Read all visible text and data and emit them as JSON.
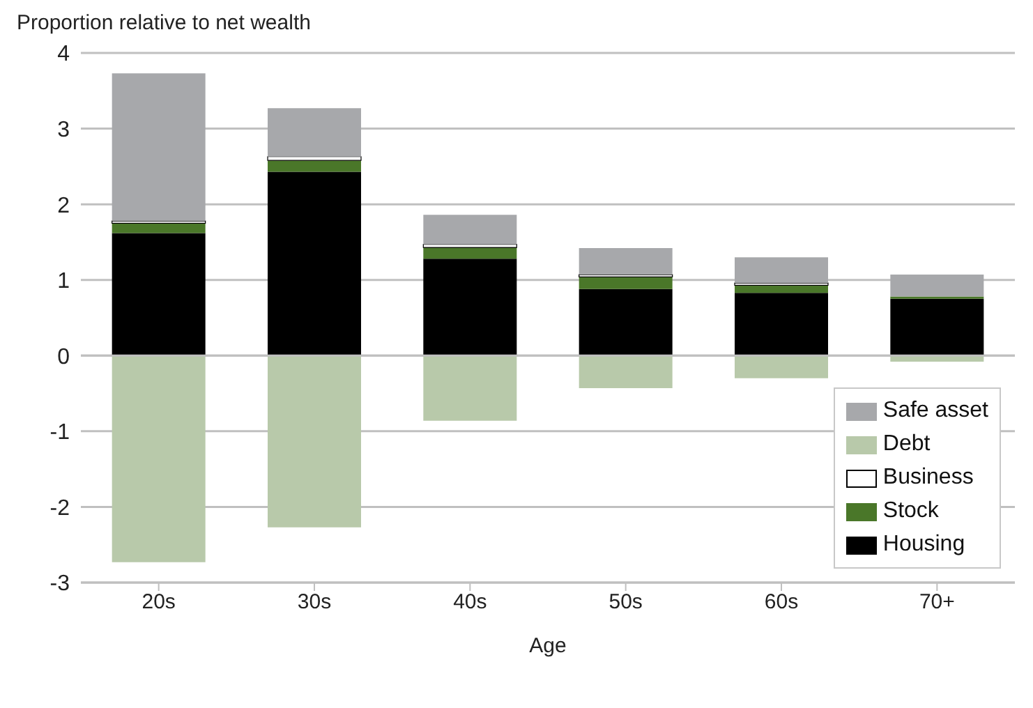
{
  "chart_data": {
    "type": "bar",
    "stacked": true,
    "xlabel": "Age",
    "ylabel": "Proportion relative to net wealth",
    "categories": [
      "20s",
      "30s",
      "40s",
      "50s",
      "60s",
      "70+"
    ],
    "series": [
      {
        "name": "Housing",
        "color": "#000000",
        "values": [
          1.62,
          2.43,
          1.28,
          0.88,
          0.83,
          0.75
        ]
      },
      {
        "name": "Stock",
        "color": "#4a7729",
        "values": [
          0.13,
          0.15,
          0.15,
          0.16,
          0.1,
          0.03
        ]
      },
      {
        "name": "Business",
        "color": "#ffffff",
        "values": [
          0.03,
          0.05,
          0.04,
          0.03,
          0.03,
          null
        ]
      },
      {
        "name": "Debt",
        "color": "#b8c9aa",
        "values": [
          -2.73,
          -2.27,
          -0.86,
          -0.43,
          -0.3,
          -0.08
        ]
      },
      {
        "name": "Safe asset",
        "color": "#a7a8ab",
        "values": [
          1.95,
          0.64,
          0.39,
          0.35,
          0.34,
          0.29
        ]
      }
    ],
    "ylim": [
      -3,
      4
    ],
    "yticks": [
      -3,
      -2,
      -1,
      0,
      1,
      2,
      3,
      4
    ],
    "grid": "y",
    "legend": "bottom right"
  }
}
